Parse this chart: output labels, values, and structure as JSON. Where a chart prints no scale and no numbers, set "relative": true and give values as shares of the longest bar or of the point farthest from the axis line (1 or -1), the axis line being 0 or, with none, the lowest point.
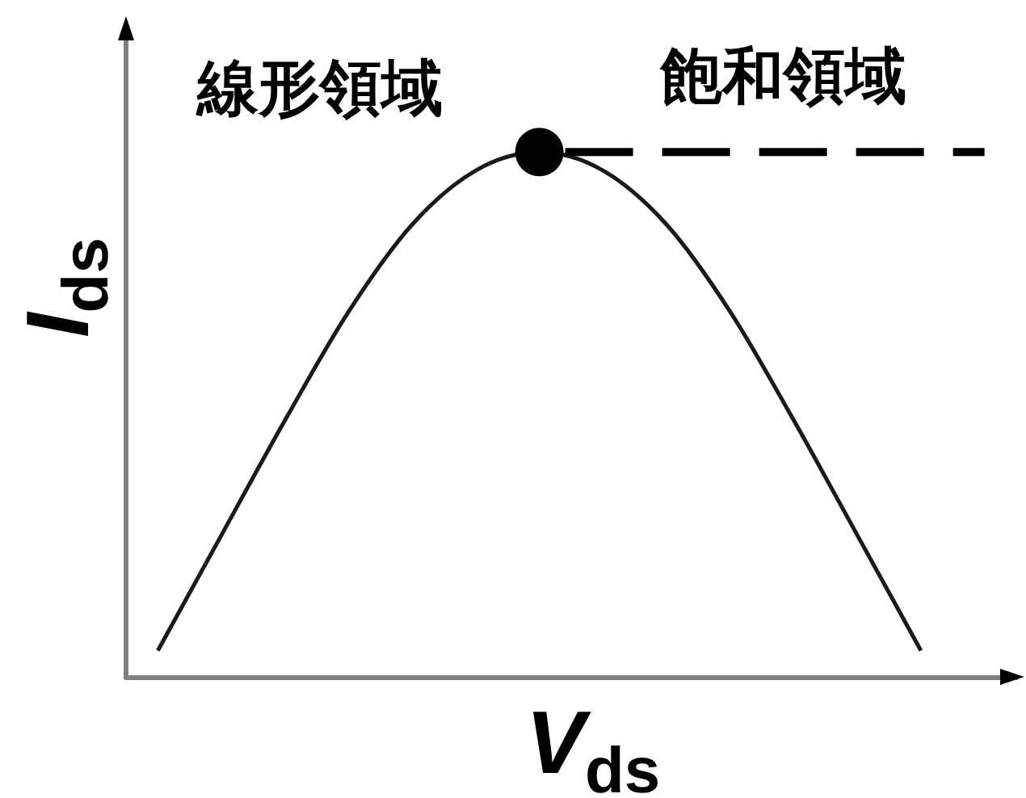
{
  "chart_data": {
    "type": "line",
    "relative": true,
    "xlabel": "V$_{ds}$",
    "ylabel": "I$_{ds}$",
    "tick_labels": false,
    "annotations": [
      "線形領域",
      "飽和領域"
    ],
    "categories": [
      null,
      null,
      null,
      null,
      null,
      null,
      null,
      null,
      null,
      null,
      null,
      null,
      null,
      null
    ],
    "series": [
      {
        "color": "#1a1a1a",
        "line_style": "solid",
        "marker": "none",
        "values": [
          0.05,
          0.27,
          0.489,
          0.696,
          0.862,
          0.965,
          1.0,
          0.965,
          0.862,
          0.696,
          0.489,
          0.27,
          0.05,
          null
        ]
      },
      {
        "color": "#000000",
        "line_style": "dashed",
        "marker": "none",
        "values": [
          null,
          null,
          null,
          null,
          null,
          null,
          1.0,
          1.0,
          1.0,
          1.0,
          1.0,
          1.0,
          1.0,
          1.0
        ]
      },
      {
        "color": "#000000",
        "marker": "circle",
        "values": [
          null,
          null,
          null,
          null,
          null,
          null,
          1.0,
          null,
          null,
          null,
          null,
          null,
          null,
          null
        ]
      }
    ]
  }
}
